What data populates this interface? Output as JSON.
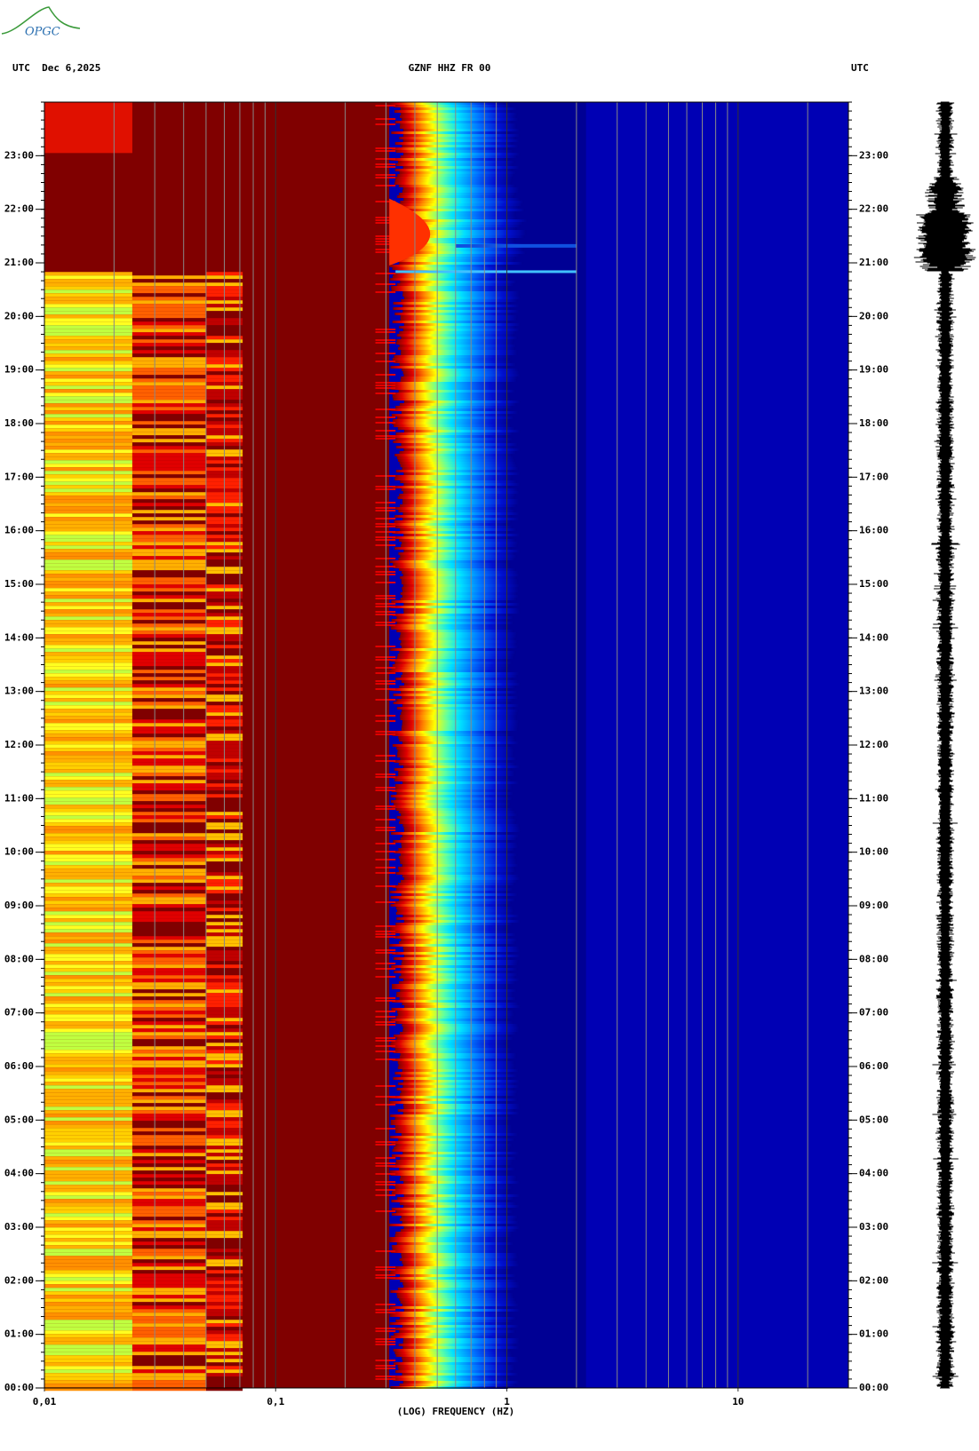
{
  "logo": "OPGC",
  "chart_data": {
    "type": "spectrogram",
    "left_label": "UTC  Dec 6,2025",
    "title": "GZNF HHZ FR 00",
    "right_label": "UTC",
    "xlabel": "(LOG) FREQUENCY (HZ)",
    "xscale": "log",
    "xlim": [
      0.01,
      30
    ],
    "xticks": [
      {
        "value": 0.01,
        "label": "0,01"
      },
      {
        "value": 0.1,
        "label": "0,1"
      },
      1,
      10
    ],
    "ylim": [
      0,
      24
    ],
    "yticks": [
      {
        "value": 0,
        "label": "00:00"
      },
      {
        "value": 1,
        "label": "01:00"
      },
      {
        "value": 2,
        "label": "02:00"
      },
      {
        "value": 3,
        "label": "03:00"
      },
      {
        "value": 4,
        "label": "04:00"
      },
      {
        "value": 5,
        "label": "05:00"
      },
      {
        "value": 6,
        "label": "06:00"
      },
      {
        "value": 7,
        "label": "07:00"
      },
      {
        "value": 8,
        "label": "08:00"
      },
      {
        "value": 9,
        "label": "09:00"
      },
      {
        "value": 10,
        "label": "10:00"
      },
      {
        "value": 11,
        "label": "11:00"
      },
      {
        "value": 12,
        "label": "12:00"
      },
      {
        "value": 13,
        "label": "13:00"
      },
      {
        "value": 14,
        "label": "14:00"
      },
      {
        "value": 15,
        "label": "15:00"
      },
      {
        "value": 16,
        "label": "16:00"
      },
      {
        "value": 17,
        "label": "17:00"
      },
      {
        "value": 18,
        "label": "18:00"
      },
      {
        "value": 19,
        "label": "19:00"
      },
      {
        "value": 20,
        "label": "20:00"
      },
      {
        "value": 21,
        "label": "21:00"
      },
      {
        "value": 22,
        "label": "22:00"
      },
      {
        "value": 23,
        "label": "23:00"
      }
    ]
  }
}
